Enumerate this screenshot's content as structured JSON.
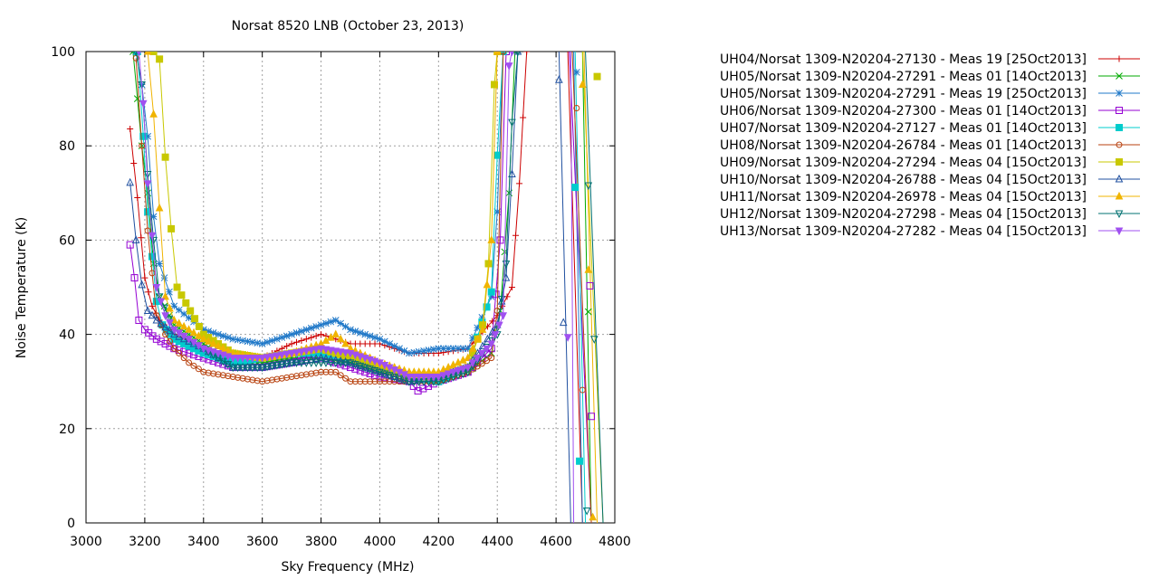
{
  "chart_data": {
    "type": "line",
    "title": "Norsat 8520 LNB (October 23, 2013)",
    "xlabel": "Sky Frequency (MHz)",
    "ylabel": "Noise Temperature (K)",
    "xlim": [
      3000,
      4800
    ],
    "ylim": [
      0,
      100
    ],
    "x_ticks": [
      "3000",
      "3200",
      "3400",
      "3600",
      "3800",
      "4000",
      "4200",
      "4400",
      "4600",
      "4800"
    ],
    "y_ticks": [
      "0",
      "20",
      "40",
      "60",
      "80",
      "100"
    ],
    "grid": true,
    "legend_position": "right",
    "series": [
      {
        "name": "UH04/Norsat 1309-N20204-27130 - Meas 19 [25Oct2013]",
        "color": "#cc0000",
        "marker": "plus",
        "x": [
          3150,
          3175,
          3200,
          3225,
          3250,
          3300,
          3400,
          3500,
          3600,
          3700,
          3800,
          3900,
          4000,
          4100,
          4200,
          4300,
          4400,
          4450,
          4475,
          4500
        ],
        "y": [
          83.6,
          69,
          52,
          46,
          43,
          40,
          37,
          35,
          35,
          38,
          40,
          38,
          38,
          36,
          36,
          37,
          44,
          50,
          72,
          100
        ]
      },
      {
        "name": "UH05/Norsat 1309-N20204-27291 - Meas 01 [14Oct2013]",
        "color": "#00aa00",
        "marker": "x",
        "x": [
          3160,
          3190,
          3210,
          3230,
          3250,
          3300,
          3400,
          3500,
          3600,
          3700,
          3800,
          3900,
          4000,
          4100,
          4200,
          4300,
          4380,
          4410,
          4440,
          4460
        ],
        "y": [
          100,
          80,
          70,
          55,
          48,
          42,
          38,
          34,
          34,
          35,
          35,
          34,
          32,
          31,
          31,
          32,
          36,
          45,
          70,
          100
        ]
      },
      {
        "name": "UH05/Norsat 1309-N20204-27291 - Meas 19 [25Oct2013]",
        "color": "#1f78c8",
        "marker": "star",
        "x": [
          3170,
          3190,
          3210,
          3230,
          3250,
          3300,
          3400,
          3500,
          3600,
          3700,
          3800,
          3850,
          3900,
          4000,
          4100,
          4200,
          4300,
          4380,
          4400,
          4420
        ],
        "y": [
          100,
          93,
          82,
          65,
          55,
          46,
          41,
          39,
          38,
          40,
          42,
          43,
          41,
          39,
          36,
          37,
          37,
          48,
          66,
          100
        ]
      },
      {
        "name": "UH06/Norsat 1309-N20204-27300 - Meas 01 [14Oct2013]",
        "color": "#9400d3",
        "marker": "square",
        "x": [
          3150,
          3165,
          3180,
          3200,
          3240,
          3300,
          3400,
          3500,
          3600,
          3700,
          3800,
          3900,
          4000,
          4100,
          4130,
          4200,
          4300,
          4380,
          4410,
          4430
        ],
        "y": [
          59,
          52,
          43,
          41,
          39,
          37,
          35,
          33,
          33,
          34,
          35,
          33,
          31,
          30,
          28,
          30,
          32,
          37,
          60,
          100
        ]
      },
      {
        "name": "UH07/Norsat 1309-N20204-27127 - Meas 01 [14Oct2013]",
        "color": "#00cccc",
        "marker": "square-filled",
        "x": [
          3175,
          3195,
          3210,
          3240,
          3260,
          3300,
          3400,
          3500,
          3600,
          3700,
          3800,
          3900,
          4000,
          4100,
          4200,
          4300,
          4380,
          4400,
          4420
        ],
        "y": [
          100,
          82,
          66,
          47,
          42,
          39,
          36,
          34,
          35,
          36,
          36,
          35,
          33,
          31,
          30,
          33,
          49,
          78,
          100
        ]
      },
      {
        "name": "UH08/Norsat 1309-N20204-26784 - Meas 01 [14Oct2013]",
        "color": "#b8420f",
        "marker": "circle",
        "x": [
          3170,
          3190,
          3210,
          3240,
          3270,
          3300,
          3350,
          3400,
          3500,
          3600,
          3700,
          3800,
          3850,
          3900,
          4000,
          4100,
          4200,
          4300,
          4380,
          4400,
          4420
        ],
        "y": [
          98.6,
          80,
          62,
          44,
          40,
          37,
          34,
          32,
          31,
          30,
          31,
          32,
          32,
          30,
          30,
          30,
          30,
          32,
          35,
          45,
          100
        ]
      },
      {
        "name": "UH09/Norsat 1309-N20204-27294 - Meas 04 [15Oct2013]",
        "color": "#c8c800",
        "marker": "square-filled",
        "x": [
          3230,
          3250,
          3270,
          3290,
          3310,
          3400,
          3500,
          3600,
          3700,
          3800,
          3900,
          4000,
          4100,
          4200,
          4300,
          4350,
          4370,
          4390,
          4400
        ],
        "y": [
          100,
          98.4,
          77.6,
          62.4,
          50,
          40,
          36,
          35,
          36,
          37,
          35,
          33,
          31,
          31,
          33,
          42,
          55,
          93,
          100
        ]
      },
      {
        "name": "UH10/Norsat 1309-N20204-26788 - Meas 04 [15Oct2013]",
        "color": "#2050a0",
        "marker": "triangle",
        "x": [
          3150,
          3170,
          3190,
          3210,
          3240,
          3300,
          3400,
          3500,
          3600,
          3700,
          3800,
          3900,
          4000,
          4100,
          4200,
          4300,
          4400,
          4430,
          4450,
          4470
        ],
        "y": [
          72.2,
          60,
          50.5,
          45,
          43,
          40,
          37,
          33,
          33,
          34,
          35,
          34,
          32,
          30,
          31,
          33,
          42,
          52,
          74,
          100
        ]
      },
      {
        "name": "UH11/Norsat 1309-N20204-26978 - Meas 04 [15Oct2013]",
        "color": "#f0b400",
        "marker": "triangle-filled",
        "x": [
          3210,
          3230,
          3250,
          3270,
          3300,
          3400,
          3500,
          3600,
          3700,
          3800,
          3850,
          3900,
          4000,
          4100,
          4200,
          4300,
          4350,
          4380,
          4400
        ],
        "y": [
          100,
          86.7,
          66.8,
          48,
          43,
          39,
          36,
          35,
          36,
          38,
          40,
          37,
          34,
          32,
          32,
          35,
          41,
          60,
          100
        ]
      },
      {
        "name": "UH12/Norsat 1309-N20204-27298 - Meas 04 [15Oct2013]",
        "color": "#007070",
        "marker": "triangle-down",
        "x": [
          3170,
          3190,
          3210,
          3230,
          3250,
          3300,
          3400,
          3500,
          3600,
          3700,
          3800,
          3900,
          4000,
          4100,
          4200,
          4300,
          4400,
          4430,
          4450,
          4470
        ],
        "y": [
          100,
          93,
          74,
          60,
          48,
          41,
          37,
          33,
          33,
          34,
          34,
          34,
          32,
          30,
          30,
          32,
          40,
          55,
          85,
          100
        ]
      },
      {
        "name": "UH13/Norsat 1309-N20204-27282 - Meas 04 [15Oct2013]",
        "color": "#a050f0",
        "marker": "triangle-down-filled",
        "x": [
          3180,
          3195,
          3210,
          3240,
          3270,
          3300,
          3400,
          3500,
          3600,
          3700,
          3800,
          3900,
          4000,
          4100,
          4200,
          4300,
          4380,
          4420,
          4440,
          4450
        ],
        "y": [
          100,
          89,
          72,
          50,
          44,
          41,
          37,
          35,
          35,
          36,
          37,
          36,
          34,
          31,
          31,
          33,
          38,
          44,
          97,
          100
        ]
      }
    ],
    "high_band": {
      "note_series_order": [
        0,
        1,
        2,
        3,
        4,
        5,
        6,
        7,
        8,
        9,
        10
      ],
      "x_left": [
        4640,
        4690,
        4660,
        4645,
        4665,
        4655,
        4690,
        4610,
        4695,
        4700,
        4650
      ],
      "x_bottom": [
        4690,
        4720,
        4690,
        4720,
        4700,
        4720,
        4760,
        4650,
        4740,
        4760,
        4660
      ],
      "markers": [
        {
          "series": 1,
          "x": 4710,
          "y": 44.8
        },
        {
          "series": 2,
          "x": 4670,
          "y": 95.6
        },
        {
          "series": 3,
          "x": 4720,
          "y": 22.6
        },
        {
          "series": 3,
          "x": 4715,
          "y": 50.3
        },
        {
          "series": 4,
          "x": 4665,
          "y": 71.2
        },
        {
          "series": 4,
          "x": 4680,
          "y": 13.1
        },
        {
          "series": 5,
          "x": 4670,
          "y": 88
        },
        {
          "series": 5,
          "x": 4690,
          "y": 28.2
        },
        {
          "series": 6,
          "x": 4740,
          "y": 94.7
        },
        {
          "series": 7,
          "x": 4610,
          "y": 94
        },
        {
          "series": 7,
          "x": 4625,
          "y": 42.5
        },
        {
          "series": 8,
          "x": 4710,
          "y": 53.7
        },
        {
          "series": 8,
          "x": 4690,
          "y": 93
        },
        {
          "series": 8,
          "x": 4725,
          "y": 1.2
        },
        {
          "series": 9,
          "x": 4710,
          "y": 71.6
        },
        {
          "series": 9,
          "x": 4730,
          "y": 39
        },
        {
          "series": 9,
          "x": 4705,
          "y": 2.6
        },
        {
          "series": 10,
          "x": 4640,
          "y": 39.4
        }
      ]
    }
  }
}
